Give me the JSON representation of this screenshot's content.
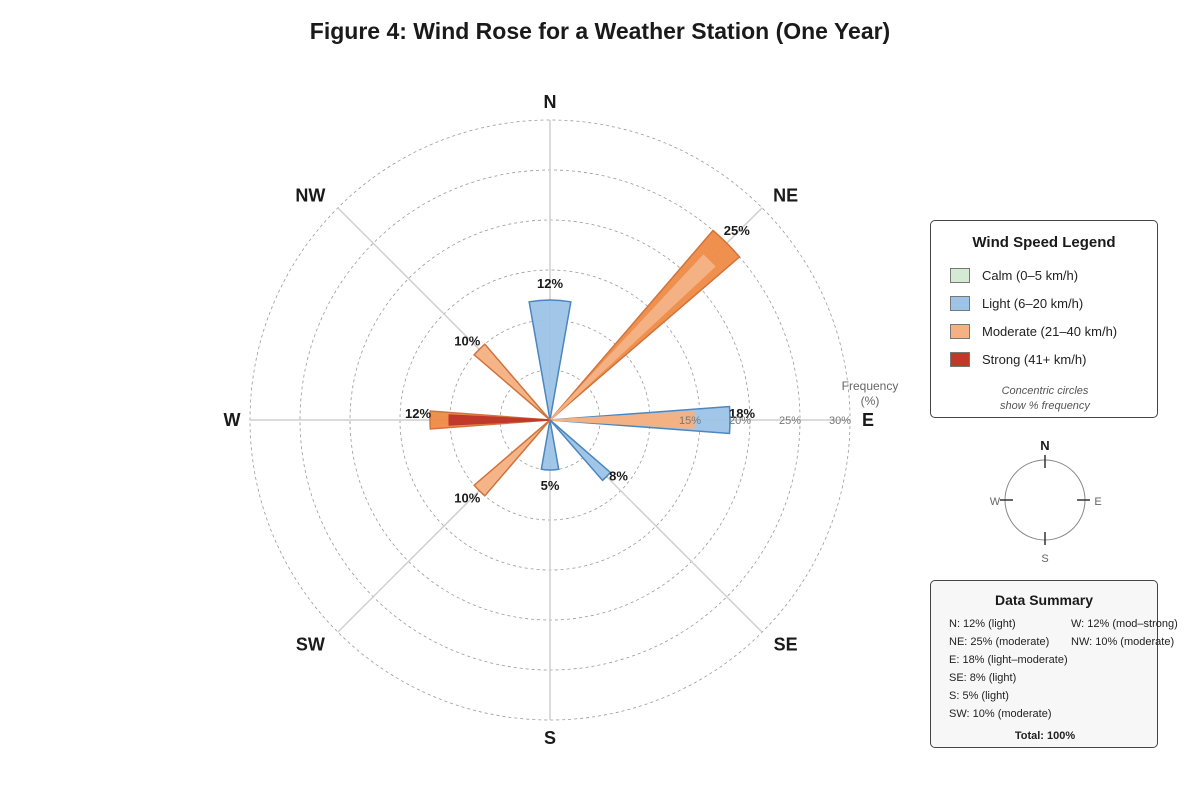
{
  "page": {
    "title": "Figure 4: Wind Rose for a Weather Station (One Year)"
  },
  "chart_data": {
    "type": "wind-rose",
    "title": "Figure 4: Wind Rose for a Weather Station (One Year)",
    "directions": [
      "N",
      "NE",
      "E",
      "SE",
      "S",
      "SW",
      "W",
      "NW"
    ],
    "values": [
      12,
      25,
      18,
      8,
      5,
      10,
      12,
      10
    ],
    "value_labels": [
      "12%",
      "25%",
      "18%",
      "8%",
      "5%",
      "10%",
      "12%",
      "10%"
    ],
    "dominant_category": [
      "light",
      "moderate",
      "light-moderate",
      "light",
      "light",
      "moderate",
      "moderate-strong",
      "moderate"
    ],
    "radial_axis": {
      "title": "Frequency (%)",
      "ticks": [
        15,
        20,
        25,
        30
      ],
      "tick_labels": [
        "15%",
        "20%",
        "25%",
        "30%"
      ],
      "max": 30
    },
    "grid": true,
    "legend_position": "right"
  },
  "legend": {
    "title": "Wind Speed Legend",
    "items": [
      {
        "label": "Calm (0–5 km/h)",
        "color": "#d5ead3"
      },
      {
        "label": "Light (6–20 km/h)",
        "color": "#9dc3e6"
      },
      {
        "label": "Moderate (21–40 km/h)",
        "color": "#f4b183"
      },
      {
        "label": "Strong (41+ km/h)",
        "color": "#c0392b"
      }
    ],
    "note_line1": "Concentric circles",
    "note_line2": "show % frequency"
  },
  "compass": {
    "n": "N",
    "e": "E",
    "s": "S",
    "w": "W"
  },
  "summary": {
    "title": "Data Summary",
    "left_lines": [
      "N: 12% (light)",
      "NE: 25% (moderate)",
      "E: 18% (light–moderate)",
      "SE: 8% (light)",
      "S: 5% (light)",
      "SW: 10% (moderate)"
    ],
    "right_lines": [
      "W: 12% (mod–strong)",
      "NW: 10% (moderate)"
    ],
    "total": "Total: 100%"
  },
  "colors": {
    "light_fill": "#9dc3e6",
    "light_stroke": "#4a86c0",
    "moderate_fill": "#f4b183",
    "moderate_stroke": "#d0743c",
    "moderate_dark": "#ee8a46",
    "strong_fill": "#c0392b"
  }
}
